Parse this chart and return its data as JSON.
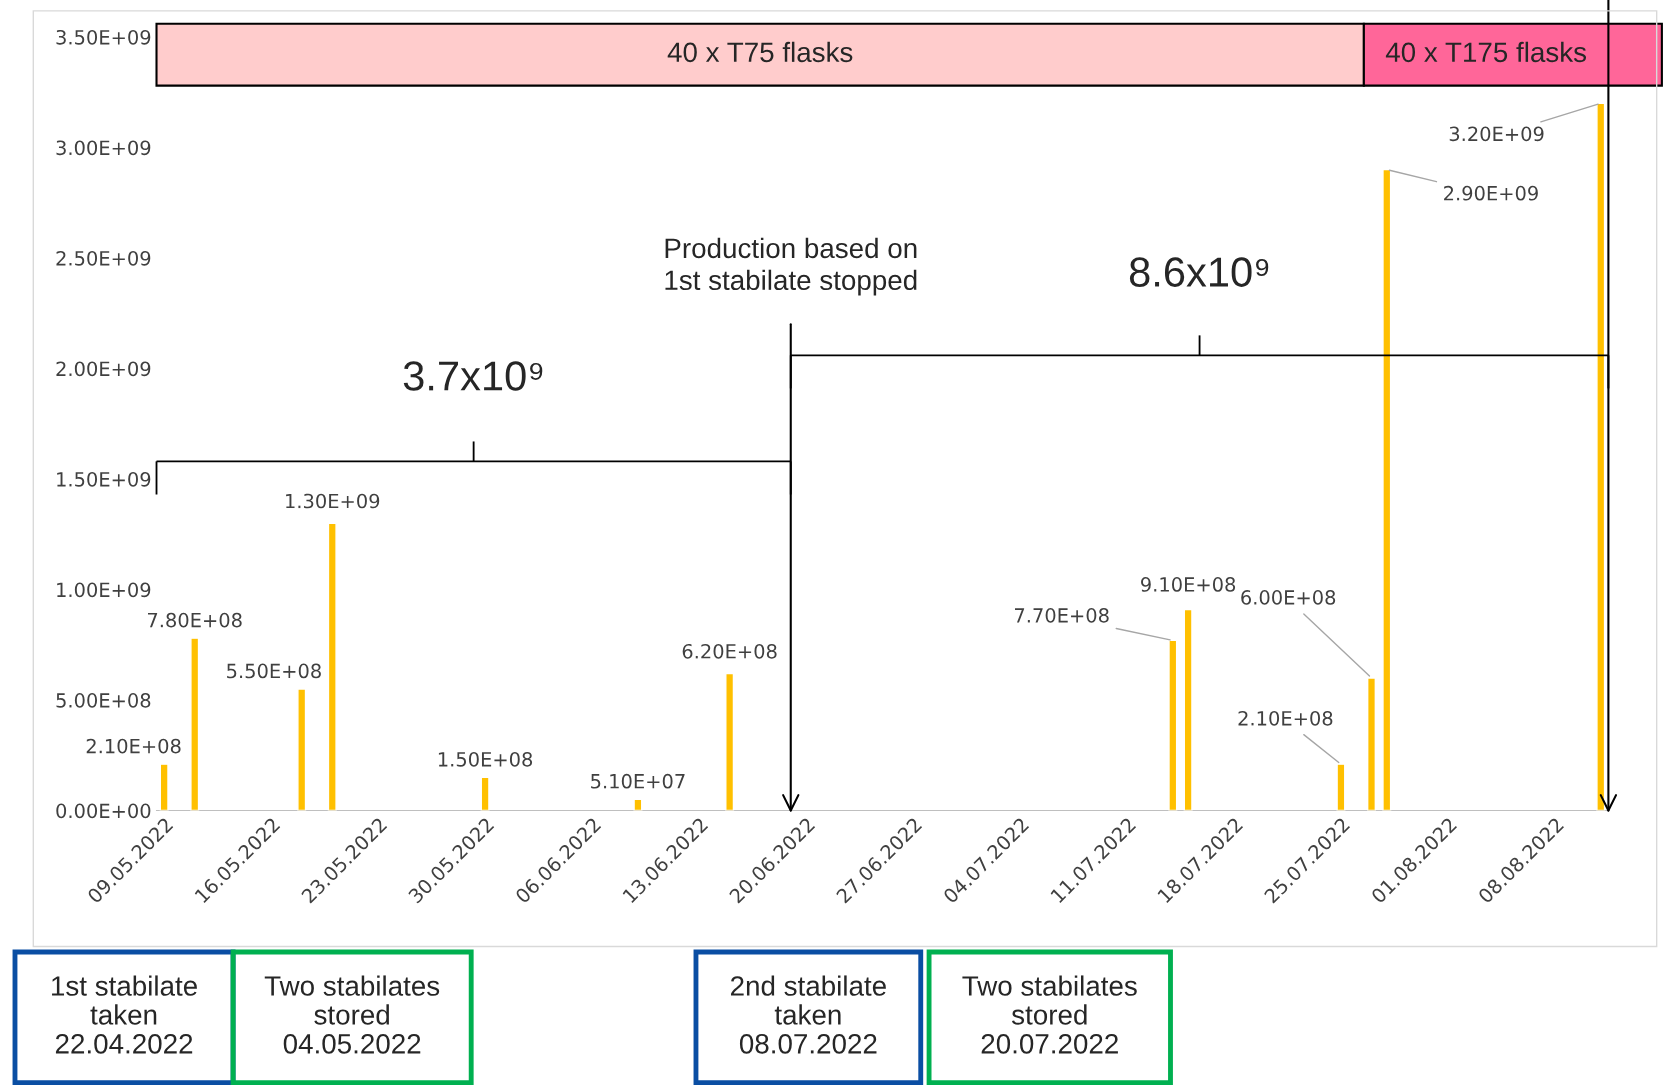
{
  "chart_data": {
    "type": "bar",
    "x": [
      "2022-05-09",
      "2022-05-11",
      "2022-05-18",
      "2022-05-20",
      "2022-05-30",
      "2022-06-09",
      "2022-06-15",
      "2022-07-14",
      "2022-07-15",
      "2022-07-25",
      "2022-07-27",
      "2022-07-28",
      "2022-08-11"
    ],
    "series": [
      {
        "color": "#ffc000",
        "values": [
          210000000,
          780000000,
          550000000,
          1300000000,
          150000000,
          51000000,
          620000000,
          770000000,
          910000000,
          210000000,
          600000000,
          2900000000,
          3200000000
        ]
      }
    ],
    "value_labels": [
      "2.10E+08",
      "7.80E+08",
      "5.50E+08",
      "1.30E+09",
      "1.50E+08",
      "5.10E+07",
      "6.20E+08",
      "7.70E+08",
      "9.10E+08",
      "2.10E+08",
      "6.00E+08",
      "2.90E+09",
      "3.20E+09"
    ],
    "xlim": [
      "2022-05-08T12:00",
      "2022-08-11T12:00"
    ],
    "xticks": [
      {
        "value": "2022-05-09",
        "label": "09.05.2022"
      },
      {
        "value": "2022-05-16",
        "label": "16.05.2022"
      },
      {
        "value": "2022-05-23",
        "label": "23.05.2022"
      },
      {
        "value": "2022-05-30",
        "label": "30.05.2022"
      },
      {
        "value": "2022-06-06",
        "label": "06.06.2022"
      },
      {
        "value": "2022-06-13",
        "label": "13.06.2022"
      },
      {
        "value": "2022-06-20",
        "label": "20.06.2022"
      },
      {
        "value": "2022-06-27",
        "label": "27.06.2022"
      },
      {
        "value": "2022-07-04",
        "label": "04.07.2022"
      },
      {
        "value": "2022-07-11",
        "label": "11.07.2022"
      },
      {
        "value": "2022-07-18",
        "label": "18.07.2022"
      },
      {
        "value": "2022-07-25",
        "label": "25.07.2022"
      },
      {
        "value": "2022-08-01",
        "label": "01.08.2022"
      },
      {
        "value": "2022-08-08",
        "label": "08.08.2022"
      }
    ],
    "ylim": [
      0,
      3500000000
    ],
    "yticks": [
      {
        "value": 0,
        "label": "0.00E+00"
      },
      {
        "value": 500000000,
        "label": "5.00E+08"
      },
      {
        "value": 1000000000,
        "label": "1.00E+09"
      },
      {
        "value": 1500000000,
        "label": "1.50E+09"
      },
      {
        "value": 2000000000,
        "label": "2.00E+09"
      },
      {
        "value": 2500000000,
        "label": "2.50E+09"
      },
      {
        "value": 3000000000,
        "label": "3.00E+09"
      },
      {
        "value": 3500000000,
        "label": "3.50E+09"
      }
    ],
    "grid": false,
    "bands": [
      {
        "axis": "x",
        "from": "2022-05-08T12:00",
        "to": "2022-07-26T12:00",
        "label": "40 x T75 flasks",
        "color": "#ffcccc"
      },
      {
        "axis": "x",
        "from": "2022-07-26T12:00",
        "to": "2022-08-15",
        "label": "40 x T175 flasks",
        "color": "#ff6699"
      }
    ],
    "ref_lines": [
      {
        "axis": "x",
        "value": "2022-06-19",
        "label": "Production based on\n1st stabilate stopped"
      },
      {
        "axis": "x",
        "value": "2022-08-11T12:00"
      }
    ],
    "annotations": [
      "3.7x10⁹",
      "8.6x10⁹",
      "1st stabilate\ntaken\n22.04.2022",
      "Two stabilates\nstored\n04.05.2022",
      "2nd stabilate\ntaken\n08.07.2022",
      "Two stabilates\nstored\n20.07.2022"
    ]
  }
}
